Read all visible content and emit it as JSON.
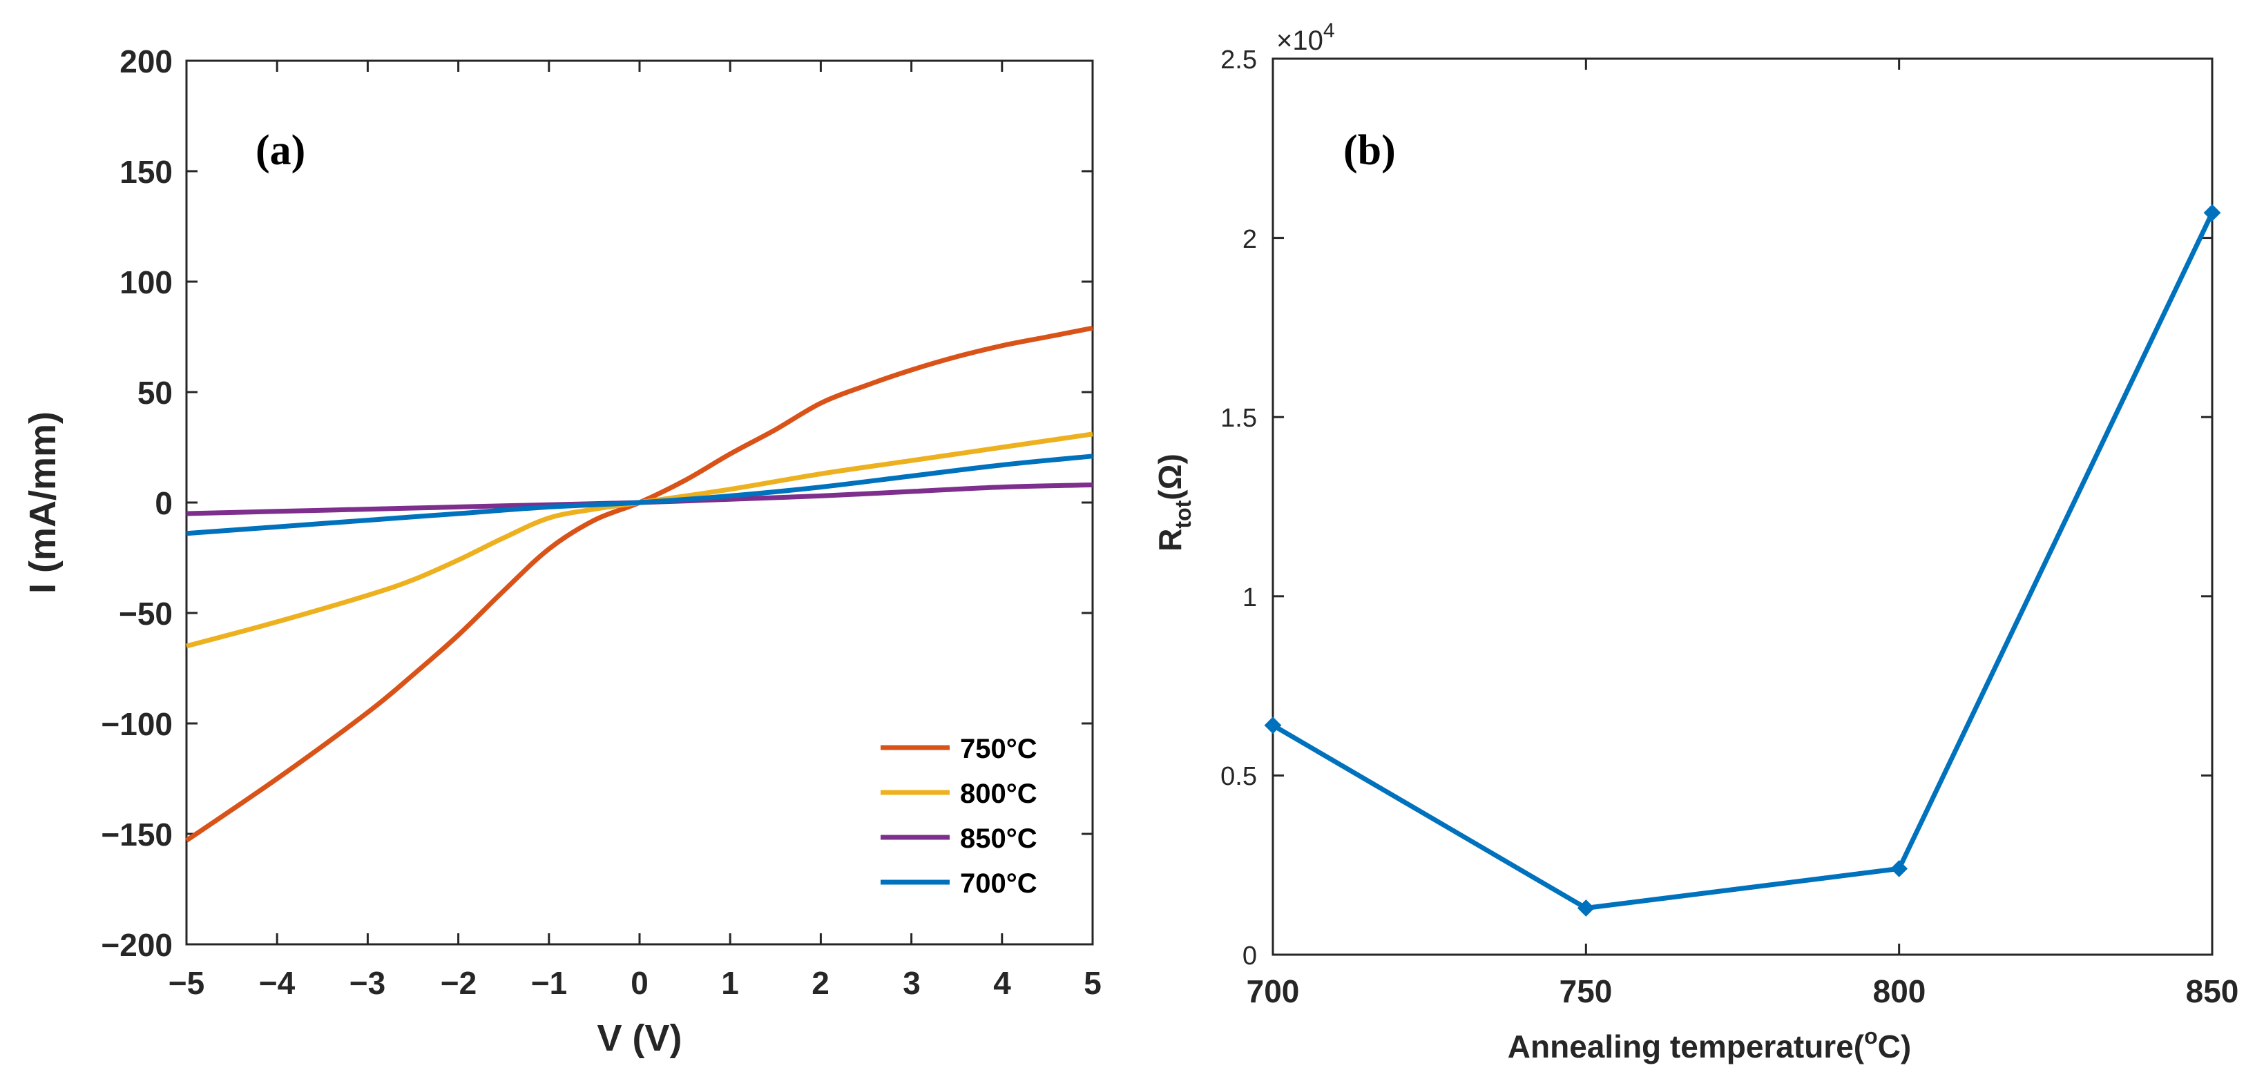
{
  "chart_data": [
    {
      "type": "line",
      "panel_label": "(a)",
      "title": "",
      "xlabel": "V (V)",
      "ylabel": "I (mA/mm)",
      "xlim": [
        -5,
        5
      ],
      "ylim": [
        -200,
        200
      ],
      "xticks": [
        "−5",
        "−4",
        "−3",
        "−2",
        "−1",
        "0",
        "1",
        "2",
        "3",
        "4",
        "5"
      ],
      "yticks": [
        "200",
        "150",
        "100",
        "50",
        "0",
        "−50",
        "−100",
        "−150",
        "−200"
      ],
      "legend_position": "bottom-right",
      "series": [
        {
          "name": "750°C",
          "color": "#D95319",
          "x": [
            -5,
            -4,
            -3,
            -2.5,
            -2,
            -1.5,
            -1,
            -0.5,
            0,
            0.5,
            1,
            1.5,
            2,
            2.5,
            3,
            3.5,
            4,
            4.5,
            5
          ],
          "y": [
            -153,
            -125,
            -95,
            -78,
            -60,
            -40,
            -21,
            -8,
            0,
            10,
            22,
            33,
            45,
            53,
            60,
            66,
            71,
            75,
            79
          ]
        },
        {
          "name": "800°C",
          "color": "#EDB120",
          "x": [
            -5,
            -4,
            -3,
            -2.5,
            -2,
            -1.5,
            -1,
            -0.5,
            0,
            1,
            2,
            3,
            4,
            5
          ],
          "y": [
            -65,
            -54,
            -42,
            -35,
            -26,
            -16,
            -7,
            -3,
            0,
            6,
            13,
            19,
            25,
            31
          ]
        },
        {
          "name": "850°C",
          "color": "#7E2F8E",
          "x": [
            -5,
            -4,
            -3,
            -2,
            -1,
            0,
            1,
            2,
            3,
            4,
            5
          ],
          "y": [
            -5,
            -4,
            -3,
            -2,
            -1,
            0,
            1.5,
            3,
            5,
            7,
            8
          ]
        },
        {
          "name": "700°C",
          "color": "#0072BD",
          "x": [
            -5,
            -4,
            -3,
            -2,
            -1,
            0,
            1,
            2,
            3,
            4,
            5
          ],
          "y": [
            -14,
            -11,
            -8,
            -5,
            -2,
            0,
            3,
            7,
            12,
            17,
            21
          ]
        }
      ]
    },
    {
      "type": "line",
      "panel_label": "(b)",
      "title": "",
      "xlabel": "Annealing temperature(°C)",
      "xlabel_main": "Annealing temperature(",
      "xlabel_sup": "o",
      "xlabel_end": "C)",
      "ylabel": "Rtot(Ω)",
      "ylabel_main": "R",
      "ylabel_sub": "tot",
      "ylabel_end": "(Ω)",
      "y_multiplier": "×10",
      "y_multiplier_exp": "4",
      "xlim": [
        700,
        850
      ],
      "ylim": [
        0,
        2.5
      ],
      "xticks": [
        "700",
        "750",
        "800",
        "850"
      ],
      "yticks": [
        "2.5",
        "2",
        "1.5",
        "1",
        "0.5",
        "0"
      ],
      "series": [
        {
          "name": "Rtot",
          "color": "#0072BD",
          "x": [
            700,
            750,
            800,
            850
          ],
          "y": [
            0.64,
            0.13,
            0.24,
            2.07
          ]
        }
      ]
    }
  ]
}
